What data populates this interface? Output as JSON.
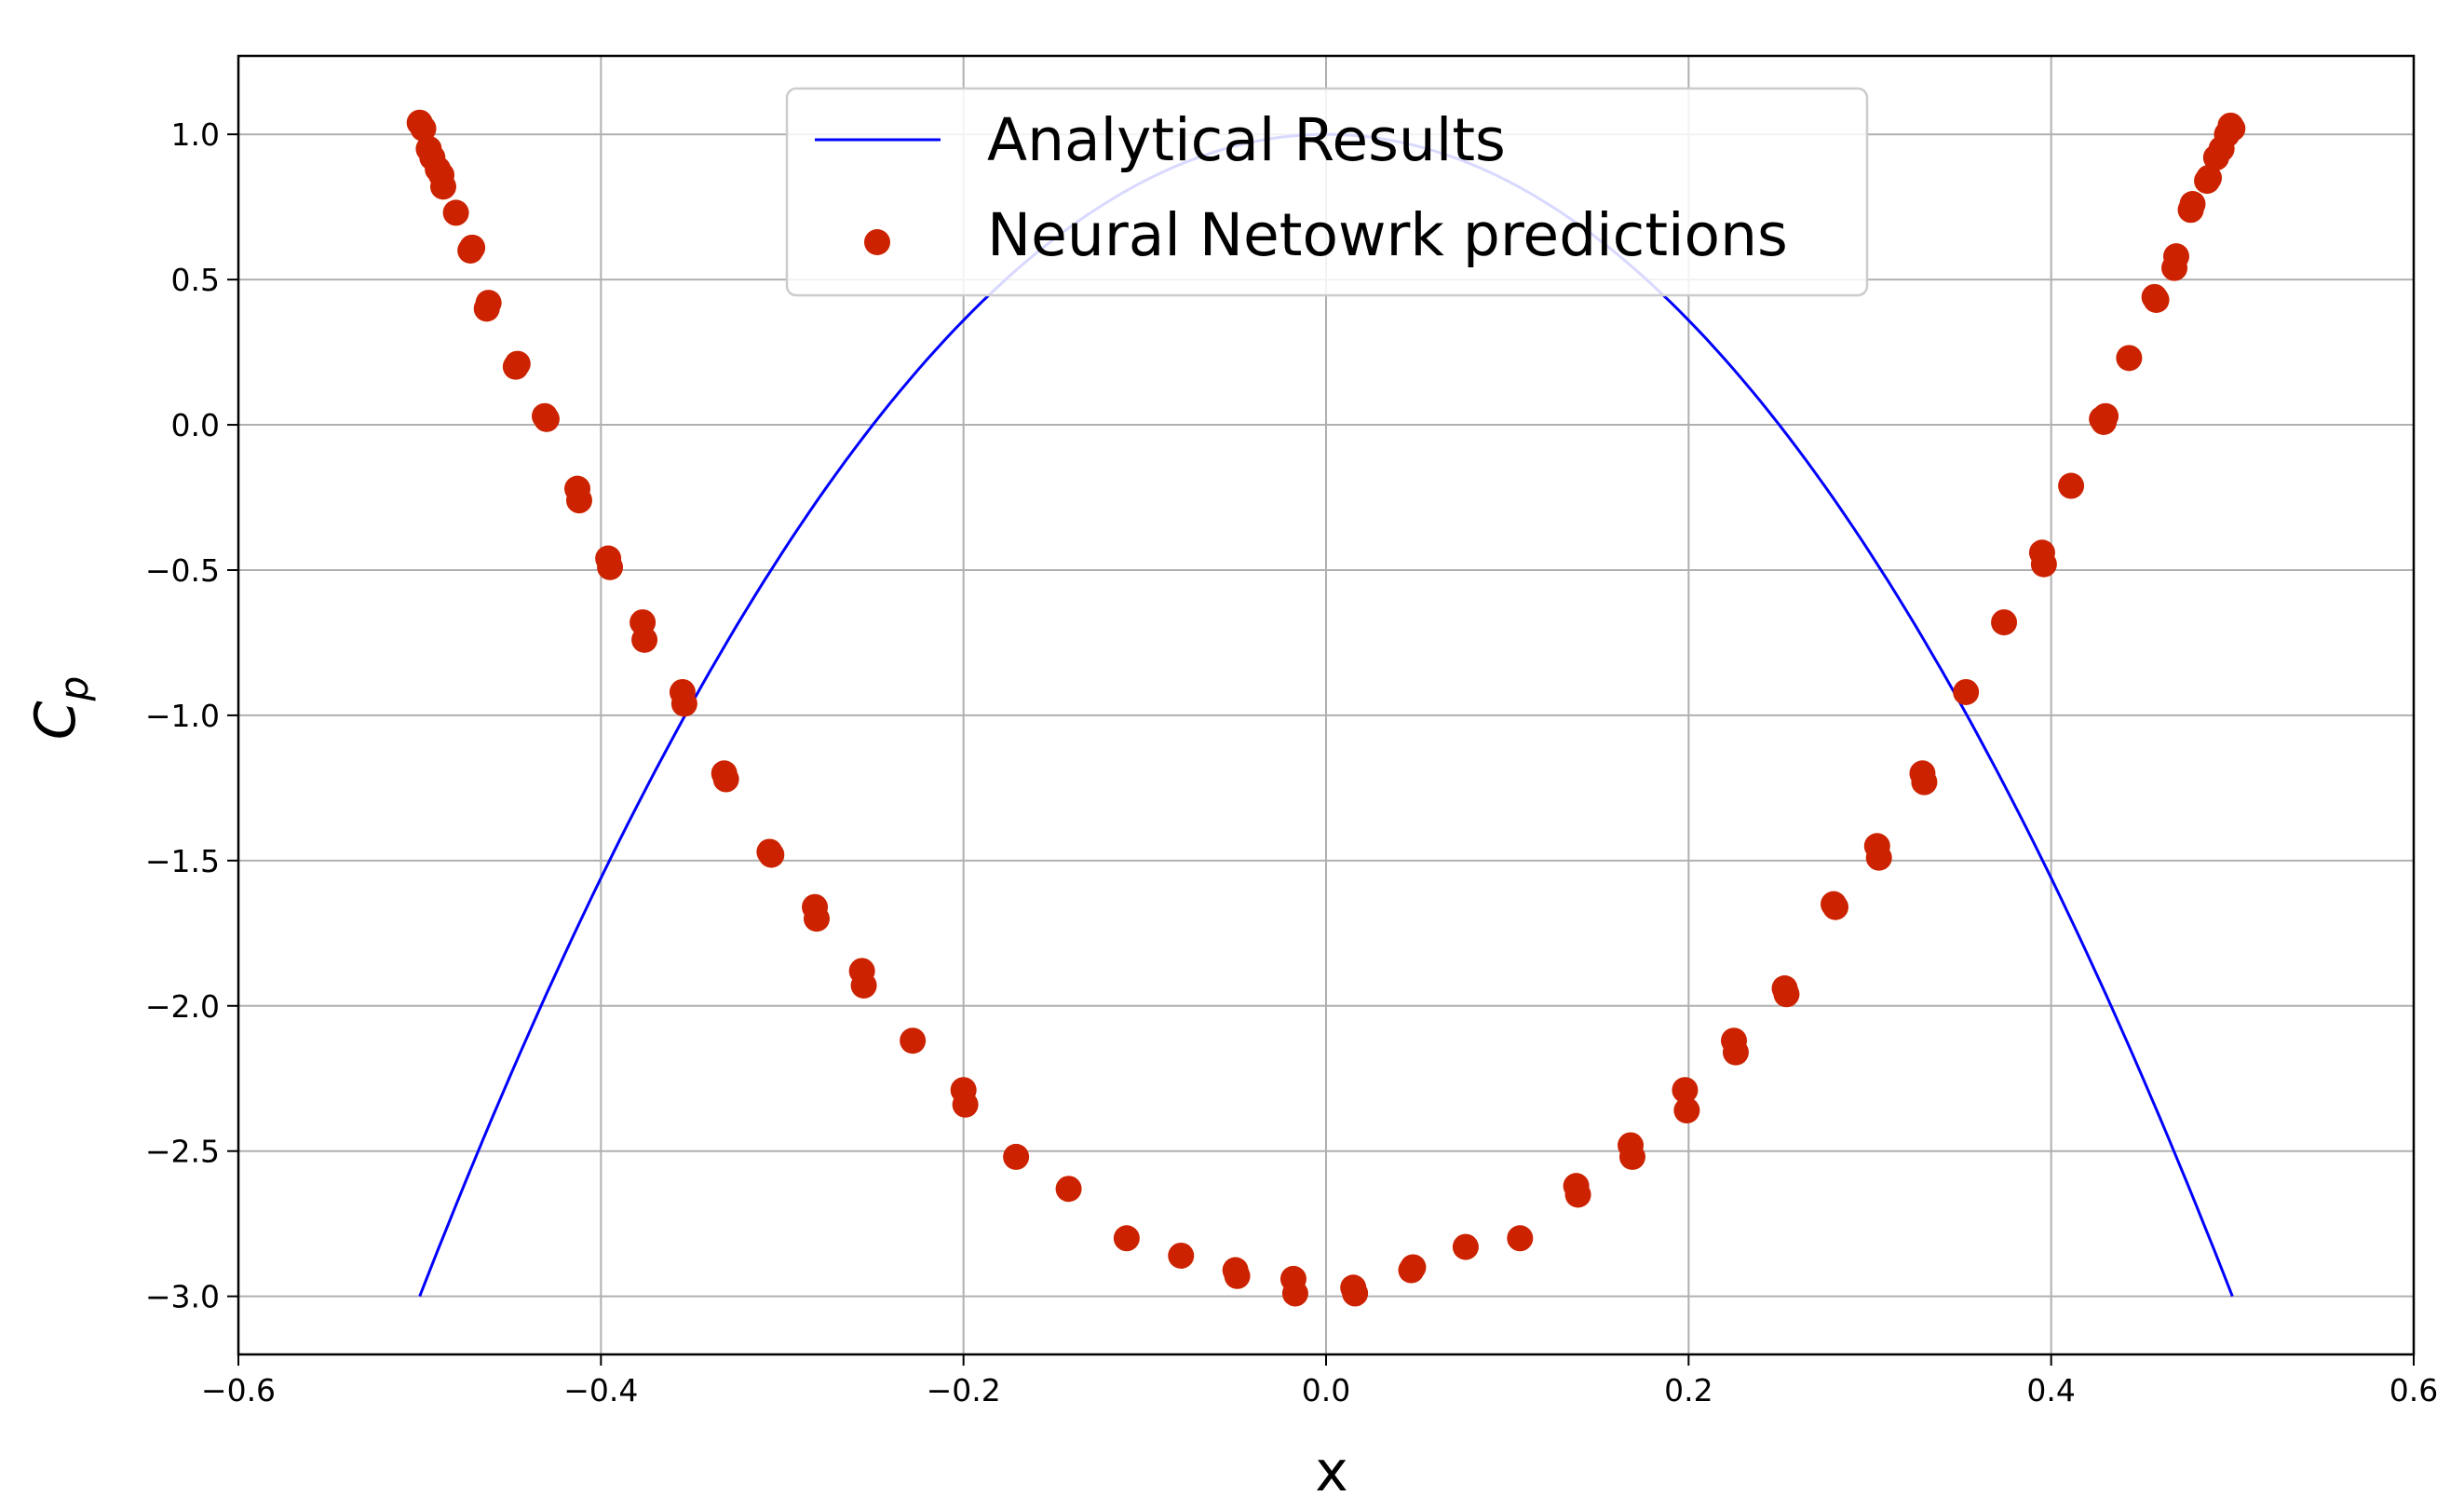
{
  "chart_data": {
    "type": "scatter",
    "xlabel": "x",
    "ylabel_main": "C",
    "ylabel_sub": "p",
    "xlim": [
      -0.6,
      0.6
    ],
    "ylim": [
      -3.2,
      1.27
    ],
    "xticks": [
      -0.6,
      -0.4,
      -0.2,
      0.0,
      0.2,
      0.4,
      0.6
    ],
    "xtick_labels": [
      "−0.6",
      "−0.4",
      "−0.2",
      "0.0",
      "0.2",
      "0.4",
      "0.6"
    ],
    "yticks": [
      1.0,
      0.5,
      0.0,
      -0.5,
      -1.0,
      -1.5,
      -2.0,
      -2.5,
      -3.0
    ],
    "ytick_labels": [
      "1.0",
      "0.5",
      "0.0",
      "−0.5",
      "−1.0",
      "−1.5",
      "−2.0",
      "−2.5",
      "−3.0"
    ],
    "grid": true,
    "legend_position": "top-center",
    "colors": {
      "line": "#0000ff",
      "points": "#cc2200",
      "grid": "#b0b0b0"
    },
    "series": [
      {
        "name": "Analytical Results",
        "kind": "line",
        "function": "Cp = 1 - 16 x^2",
        "x_range": [
          -0.5,
          0.5
        ]
      },
      {
        "name": "Neural Netowrk predictions",
        "kind": "scatter",
        "points": [
          [
            -0.5,
            1.04
          ],
          [
            -0.498,
            1.02
          ],
          [
            -0.495,
            0.95
          ],
          [
            -0.493,
            0.92
          ],
          [
            -0.49,
            0.88
          ],
          [
            -0.488,
            0.86
          ],
          [
            -0.487,
            0.82
          ],
          [
            -0.48,
            0.73
          ],
          [
            -0.472,
            0.6
          ],
          [
            -0.471,
            0.61
          ],
          [
            -0.463,
            0.4
          ],
          [
            -0.462,
            0.42
          ],
          [
            -0.447,
            0.2
          ],
          [
            -0.446,
            0.21
          ],
          [
            -0.431,
            0.03
          ],
          [
            -0.43,
            0.02
          ],
          [
            -0.413,
            -0.22
          ],
          [
            -0.412,
            -0.26
          ],
          [
            -0.396,
            -0.46
          ],
          [
            -0.395,
            -0.49
          ],
          [
            -0.377,
            -0.68
          ],
          [
            -0.376,
            -0.74
          ],
          [
            -0.355,
            -0.92
          ],
          [
            -0.354,
            -0.96
          ],
          [
            -0.332,
            -1.2
          ],
          [
            -0.331,
            -1.22
          ],
          [
            -0.307,
            -1.47
          ],
          [
            -0.306,
            -1.48
          ],
          [
            -0.282,
            -1.66
          ],
          [
            -0.281,
            -1.7
          ],
          [
            -0.256,
            -1.88
          ],
          [
            -0.255,
            -1.93
          ],
          [
            -0.228,
            -2.12
          ],
          [
            -0.2,
            -2.29
          ],
          [
            -0.199,
            -2.34
          ],
          [
            -0.171,
            -2.52
          ],
          [
            -0.142,
            -2.63
          ],
          [
            -0.11,
            -2.8
          ],
          [
            -0.08,
            -2.86
          ],
          [
            -0.05,
            -2.91
          ],
          [
            -0.049,
            -2.93
          ],
          [
            -0.018,
            -2.94
          ],
          [
            -0.017,
            -2.99
          ],
          [
            0.015,
            -2.97
          ],
          [
            0.016,
            -2.99
          ],
          [
            0.047,
            -2.91
          ],
          [
            0.048,
            -2.9
          ],
          [
            0.077,
            -2.83
          ],
          [
            0.107,
            -2.8
          ],
          [
            0.138,
            -2.62
          ],
          [
            0.139,
            -2.65
          ],
          [
            0.168,
            -2.48
          ],
          [
            0.169,
            -2.52
          ],
          [
            0.198,
            -2.29
          ],
          [
            0.199,
            -2.36
          ],
          [
            0.225,
            -2.12
          ],
          [
            0.226,
            -2.16
          ],
          [
            0.253,
            -1.94
          ],
          [
            0.254,
            -1.96
          ],
          [
            0.28,
            -1.65
          ],
          [
            0.281,
            -1.66
          ],
          [
            0.304,
            -1.45
          ],
          [
            0.305,
            -1.49
          ],
          [
            0.329,
            -1.2
          ],
          [
            0.33,
            -1.23
          ],
          [
            0.353,
            -0.92
          ],
          [
            0.374,
            -0.68
          ],
          [
            0.395,
            -0.44
          ],
          [
            0.396,
            -0.48
          ],
          [
            0.411,
            -0.21
          ],
          [
            0.428,
            0.02
          ],
          [
            0.429,
            0.01
          ],
          [
            0.43,
            0.03
          ],
          [
            0.443,
            0.23
          ],
          [
            0.457,
            0.44
          ],
          [
            0.458,
            0.43
          ],
          [
            0.468,
            0.54
          ],
          [
            0.469,
            0.58
          ],
          [
            0.477,
            0.74
          ],
          [
            0.478,
            0.76
          ],
          [
            0.486,
            0.84
          ],
          [
            0.487,
            0.85
          ],
          [
            0.491,
            0.92
          ],
          [
            0.494,
            0.95
          ],
          [
            0.497,
            1.0
          ],
          [
            0.499,
            1.03
          ],
          [
            0.5,
            1.02
          ]
        ]
      }
    ]
  }
}
